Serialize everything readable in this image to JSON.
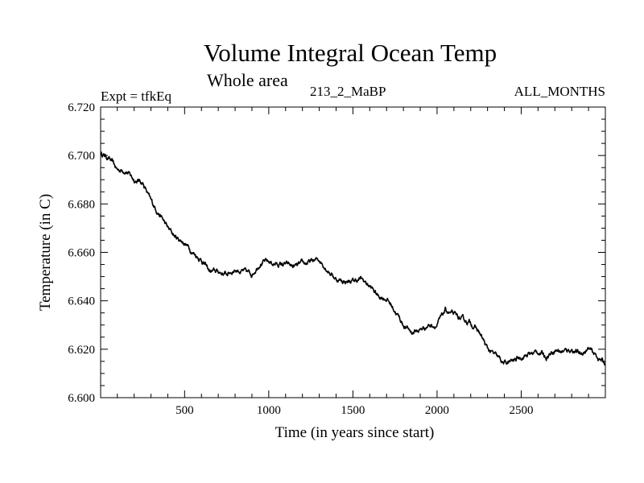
{
  "chart_data": {
    "type": "line",
    "title": "Volume Integral Ocean Temp",
    "subtitle": "Whole area",
    "annotations": {
      "left": "Expt = tfkEq",
      "center": "213_2_MaBP",
      "right": "ALL_MONTHS"
    },
    "xlabel": "Time (in years since start)",
    "ylabel": "Temperature (in C)",
    "xlim": [
      1,
      3000
    ],
    "ylim": [
      6.6,
      6.72
    ],
    "x_ticks": [
      500,
      1000,
      1500,
      2000,
      2500
    ],
    "x_tick_labels": [
      "500",
      "1000",
      "1500",
      "2000",
      "2500"
    ],
    "y_ticks": [
      6.6,
      6.62,
      6.64,
      6.66,
      6.68,
      6.7,
      6.72
    ],
    "y_tick_labels": [
      "6.600",
      "6.620",
      "6.640",
      "6.660",
      "6.680",
      "6.700",
      "6.720"
    ],
    "grid": false,
    "line_color": "#000000",
    "series": [
      {
        "x": [
          1,
          50,
          100,
          150,
          200,
          250,
          300,
          350,
          400,
          450,
          500,
          550,
          600,
          650,
          700,
          750,
          800,
          850,
          900,
          950,
          1000,
          1050,
          1100,
          1150,
          1200,
          1250,
          1300,
          1350,
          1400,
          1450,
          1500,
          1550,
          1600,
          1650,
          1700,
          1750,
          1800,
          1850,
          1900,
          1950,
          2000,
          2050,
          2100,
          2150,
          2200,
          2250,
          2300,
          2350,
          2400,
          2450,
          2500,
          2550,
          2600,
          2650,
          2700,
          2750,
          2800,
          2850,
          2900,
          2950,
          3000
        ],
        "values": [
          6.701,
          6.699,
          6.694,
          6.694,
          6.69,
          6.689,
          6.681,
          6.676,
          6.67,
          6.666,
          6.664,
          6.66,
          6.657,
          6.652,
          6.652,
          6.651,
          6.653,
          6.652,
          6.651,
          6.656,
          6.656,
          6.655,
          6.655,
          6.654,
          6.655,
          6.656,
          6.657,
          6.653,
          6.649,
          6.648,
          6.648,
          6.649,
          6.646,
          6.642,
          6.641,
          6.636,
          6.63,
          6.627,
          6.628,
          6.63,
          6.63,
          6.636,
          6.634,
          6.632,
          6.631,
          6.627,
          6.62,
          6.617,
          6.614,
          6.615,
          6.617,
          6.618,
          6.619,
          6.617,
          6.62,
          6.619,
          6.62,
          6.618,
          6.62,
          6.617,
          6.614
        ]
      }
    ]
  }
}
